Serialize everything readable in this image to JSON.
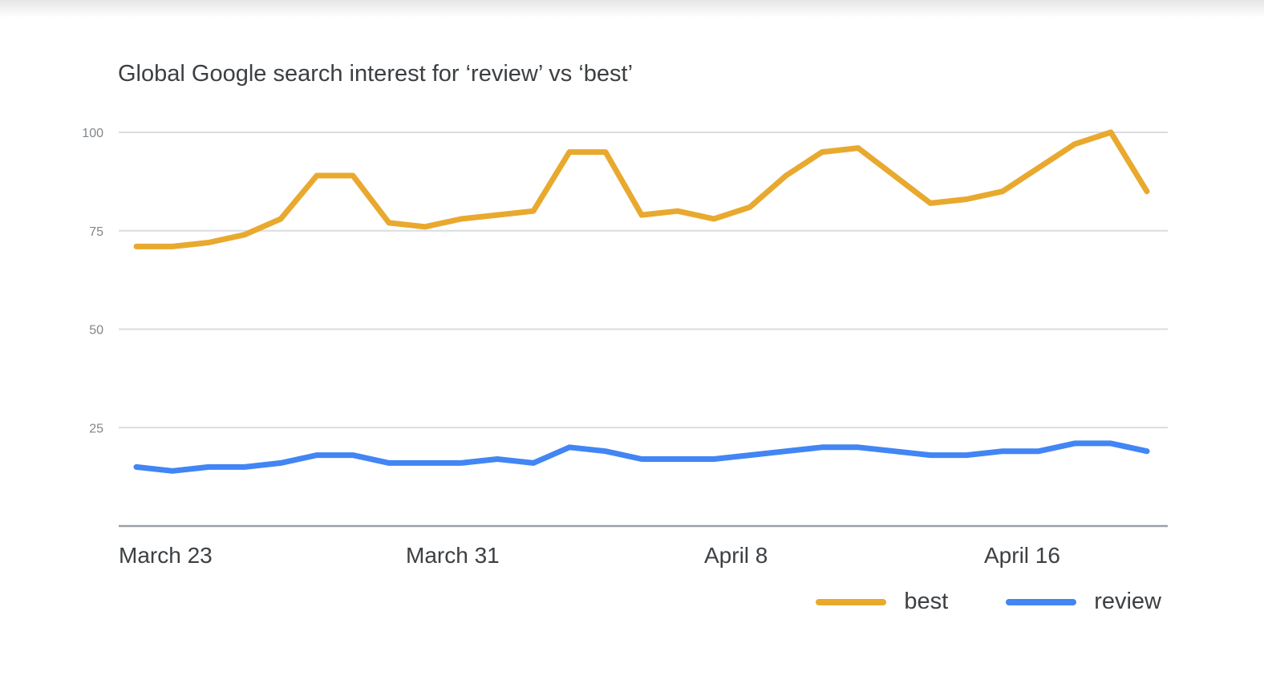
{
  "chart_data": {
    "type": "line",
    "title": "Global Google search interest for ‘review’ vs ‘best’",
    "xlabel": "",
    "ylabel": "",
    "x_tick_labels": [
      "March 23",
      "March 31",
      "April 8",
      "April 16"
    ],
    "y_ticks": [
      25,
      50,
      75,
      100
    ],
    "ylim": [
      0,
      100
    ],
    "grid": true,
    "legend_position": "bottom-right",
    "series": [
      {
        "name": "best",
        "color": "#e8a92e",
        "values": [
          71,
          71,
          72,
          74,
          78,
          89,
          89,
          77,
          76,
          78,
          79,
          80,
          95,
          95,
          79,
          80,
          78,
          81,
          89,
          95,
          96,
          89,
          82,
          83,
          85,
          91,
          97,
          100,
          85
        ]
      },
      {
        "name": "review",
        "color": "#4285f4",
        "values": [
          15,
          14,
          15,
          15,
          16,
          18,
          18,
          16,
          16,
          16,
          17,
          16,
          20,
          19,
          17,
          17,
          17,
          18,
          19,
          20,
          20,
          19,
          18,
          18,
          19,
          19,
          21,
          21,
          19
        ]
      }
    ]
  }
}
